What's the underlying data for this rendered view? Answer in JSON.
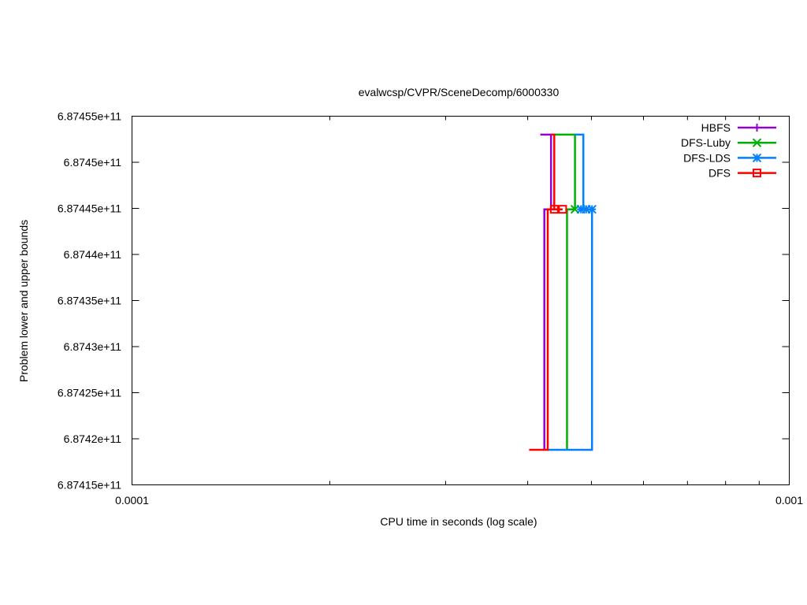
{
  "chart_data": {
    "type": "line",
    "title": "evalwcsp/CVPR/SceneDecomp/6000330",
    "xlabel": "CPU time in seconds (log scale)",
    "ylabel": "Problem lower and upper bounds",
    "xscale": "log",
    "xlim": [
      0.0001,
      0.001
    ],
    "ylim": [
      687415000000,
      687455000000
    ],
    "x_ticks": [
      "0.0001",
      "0.001"
    ],
    "y_ticks": [
      {
        "value": 687415000000,
        "label": "6.87415e+11"
      },
      {
        "value": 687420000000,
        "label": "6.8742e+11"
      },
      {
        "value": 687425000000,
        "label": "6.87425e+11"
      },
      {
        "value": 687430000000,
        "label": "6.8743e+11"
      },
      {
        "value": 687435000000,
        "label": "6.87435e+11"
      },
      {
        "value": 687440000000,
        "label": "6.8744e+11"
      },
      {
        "value": 687445000000,
        "label": "6.87445e+11"
      },
      {
        "value": 687450000000,
        "label": "6.8745e+11"
      },
      {
        "value": 687455000000,
        "label": "6.87455e+11"
      }
    ],
    "grid": false,
    "legend_position": "top-right",
    "series": [
      {
        "name": "HBFS",
        "color": "#9400d3",
        "marker": "plus",
        "upper": [
          [
            0.000418,
            687453000000
          ],
          [
            0.000434,
            687453000000
          ],
          [
            0.000434,
            687444900000
          ]
        ],
        "lower": [
          [
            0.000424,
            687418800000
          ],
          [
            0.000424,
            687444900000
          ],
          [
            0.000434,
            687444900000
          ]
        ],
        "markers": []
      },
      {
        "name": "DFS-Luby",
        "color": "#00b000",
        "marker": "x",
        "upper": [
          [
            0.000439,
            687453000000
          ],
          [
            0.000472,
            687453000000
          ],
          [
            0.000472,
            687444900000
          ]
        ],
        "lower": [
          [
            0.000459,
            687418800000
          ],
          [
            0.000459,
            687444900000
          ],
          [
            0.000472,
            687444900000
          ]
        ],
        "markers": [
          [
            0.000472,
            687444900000
          ]
        ]
      },
      {
        "name": "DFS-LDS",
        "color": "#0080ff",
        "marker": "star",
        "upper": [
          [
            0.000472,
            687453000000
          ],
          [
            0.000486,
            687453000000
          ],
          [
            0.000486,
            687444900000
          ]
        ],
        "lower": [
          [
            0.000428,
            687418800000
          ],
          [
            0.000501,
            687418800000
          ],
          [
            0.000501,
            687444900000
          ],
          [
            0.000482,
            687444900000
          ]
        ],
        "markers": [
          [
            0.000482,
            687444900000
          ],
          [
            0.000491,
            687444900000
          ],
          [
            0.000501,
            687444900000
          ]
        ]
      },
      {
        "name": "DFS",
        "color": "#ff0000",
        "marker": "square",
        "upper": [
          [
            0.000434,
            687453000000
          ],
          [
            0.000439,
            687453000000
          ],
          [
            0.000439,
            687444900000
          ]
        ],
        "lower": [
          [
            0.000402,
            687418800000
          ],
          [
            0.000429,
            687418800000
          ],
          [
            0.000429,
            687444900000
          ],
          [
            0.000452,
            687444900000
          ]
        ],
        "markers": [
          [
            0.000439,
            687444900000
          ],
          [
            0.000452,
            687444900000
          ]
        ]
      }
    ]
  }
}
